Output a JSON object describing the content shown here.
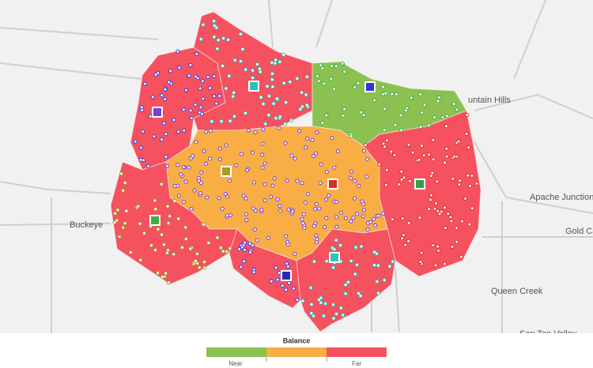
{
  "map": {
    "place_labels": [
      "Buckeye",
      "Apache Junction",
      "Gold Ca",
      "Queen Creek",
      "San Tan Valley",
      "untain Hills"
    ],
    "legend": {
      "title": "Balance",
      "near": "Near",
      "far": "Far"
    }
  }
}
